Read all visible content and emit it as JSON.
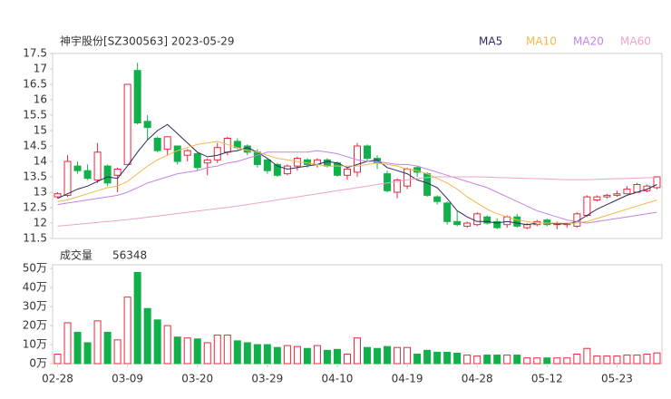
{
  "chart_data": [
    {
      "type": "candlestick",
      "title": "神宇股份[SZ300563] 2023-05-29",
      "up_color": "#e8283c",
      "down_color": "#12b04a",
      "ylim": [
        11.5,
        17.5
      ],
      "yticks": [
        11.5,
        12,
        12.5,
        13,
        13.5,
        14,
        14.5,
        15,
        15.5,
        16,
        16.5,
        17,
        17.5
      ],
      "legend": "top-right",
      "open": [
        12.85,
        12.9,
        13.85,
        13.7,
        13.4,
        13.85,
        13.55,
        13.9,
        16.95,
        15.3,
        14.75,
        14.4,
        14.5,
        14.2,
        14.25,
        13.95,
        14.05,
        14.3,
        14.65,
        14.5,
        14.3,
        14.05,
        13.9,
        13.6,
        13.85,
        14.05,
        13.9,
        14.05,
        13.95,
        13.55,
        13.65,
        14.5,
        14.1,
        13.6,
        13.0,
        13.2,
        13.8,
        13.6,
        12.85,
        12.65,
        12.05,
        11.9,
        11.95,
        12.2,
        12.05,
        11.95,
        12.2,
        11.85,
        11.95,
        12.1,
        11.95,
        11.95,
        11.9,
        12.25,
        12.75,
        12.85,
        12.9,
        12.95,
        13.0,
        13.05,
        13.15
      ],
      "high": [
        13.0,
        14.2,
        14.0,
        13.9,
        14.6,
        13.9,
        13.8,
        16.5,
        17.2,
        15.5,
        14.8,
        14.8,
        14.5,
        14.4,
        14.3,
        14.1,
        14.6,
        14.8,
        14.75,
        14.55,
        14.4,
        14.1,
        13.95,
        13.9,
        14.15,
        14.1,
        14.1,
        14.1,
        14.0,
        13.8,
        14.6,
        14.55,
        14.2,
        13.7,
        13.45,
        13.8,
        13.85,
        13.65,
        12.9,
        12.7,
        12.4,
        12.05,
        12.35,
        12.25,
        12.15,
        12.25,
        12.3,
        12.0,
        12.1,
        12.15,
        12.05,
        12.0,
        12.35,
        12.9,
        12.9,
        12.95,
        13.05,
        13.2,
        13.3,
        13.25,
        13.5
      ],
      "low": [
        12.8,
        12.85,
        13.6,
        13.4,
        13.3,
        13.2,
        13.0,
        13.9,
        15.2,
        14.7,
        14.3,
        14.2,
        13.9,
        14.0,
        13.7,
        13.55,
        13.95,
        14.2,
        14.4,
        14.2,
        13.8,
        13.6,
        13.5,
        13.55,
        13.7,
        13.8,
        13.8,
        13.8,
        13.5,
        13.4,
        13.5,
        14.0,
        13.75,
        13.0,
        12.8,
        13.1,
        13.5,
        12.85,
        12.6,
        11.95,
        11.9,
        11.85,
        11.9,
        11.95,
        11.8,
        11.85,
        11.85,
        11.8,
        11.9,
        11.9,
        11.8,
        11.85,
        11.85,
        12.2,
        12.7,
        12.8,
        12.85,
        12.95,
        13.0,
        13.0,
        13.1
      ],
      "close": [
        12.95,
        14.0,
        13.7,
        13.45,
        14.3,
        13.3,
        13.75,
        16.5,
        15.25,
        15.1,
        14.35,
        14.8,
        14.0,
        14.35,
        13.8,
        14.05,
        14.45,
        14.75,
        14.45,
        14.3,
        13.9,
        13.7,
        13.55,
        13.85,
        14.1,
        13.9,
        14.05,
        13.85,
        13.55,
        13.75,
        14.5,
        14.1,
        13.95,
        13.05,
        13.4,
        13.75,
        13.65,
        12.9,
        12.7,
        12.05,
        11.95,
        12.0,
        12.3,
        12.0,
        11.85,
        12.2,
        11.9,
        11.95,
        12.05,
        11.95,
        12.0,
        12.0,
        12.3,
        12.85,
        12.85,
        12.9,
        12.95,
        13.1,
        13.25,
        13.2,
        13.5
      ],
      "series": [
        {
          "name": "MA5",
          "color": "#2b2b5e",
          "values": [
            12.8,
            12.95,
            13.1,
            13.2,
            13.35,
            13.5,
            13.45,
            13.85,
            14.3,
            14.7,
            15.0,
            15.2,
            14.9,
            14.6,
            14.3,
            14.15,
            14.2,
            14.3,
            14.35,
            14.45,
            14.3,
            14.1,
            13.85,
            13.75,
            13.8,
            13.85,
            13.9,
            14.0,
            13.95,
            13.8,
            13.9,
            14.0,
            14.05,
            13.8,
            13.7,
            13.6,
            13.4,
            13.3,
            13.15,
            12.8,
            12.4,
            12.2,
            12.05,
            12.05,
            12.0,
            12.05,
            12.0,
            11.95,
            12.0,
            12.0,
            11.97,
            11.98,
            12.05,
            12.25,
            12.45,
            12.6,
            12.75,
            12.9,
            13.0,
            13.1,
            13.25
          ]
        },
        {
          "name": "MA10",
          "color": "#f2b84b",
          "values": [
            12.7,
            12.75,
            12.85,
            12.95,
            13.05,
            13.15,
            13.2,
            13.35,
            13.6,
            13.85,
            14.05,
            14.2,
            14.35,
            14.45,
            14.55,
            14.6,
            14.65,
            14.55,
            14.45,
            14.35,
            14.3,
            14.2,
            14.1,
            14.05,
            14.0,
            13.95,
            13.9,
            13.85,
            13.85,
            13.85,
            13.85,
            13.9,
            13.95,
            13.9,
            13.85,
            13.75,
            13.7,
            13.6,
            13.45,
            13.3,
            13.1,
            12.85,
            12.65,
            12.45,
            12.3,
            12.2,
            12.1,
            12.05,
            12.0,
            12.0,
            12.0,
            12.0,
            12.0,
            12.05,
            12.15,
            12.25,
            12.35,
            12.45,
            12.55,
            12.65,
            12.75
          ]
        },
        {
          "name": "MA20",
          "color": "#c383e8",
          "values": [
            12.6,
            12.65,
            12.7,
            12.75,
            12.8,
            12.85,
            12.9,
            13.0,
            13.15,
            13.3,
            13.4,
            13.5,
            13.6,
            13.65,
            13.7,
            13.8,
            13.85,
            13.95,
            14.0,
            14.1,
            14.2,
            14.3,
            14.3,
            14.3,
            14.3,
            14.3,
            14.35,
            14.3,
            14.25,
            14.15,
            14.05,
            14.0,
            14.0,
            13.95,
            13.9,
            13.9,
            13.85,
            13.75,
            13.65,
            13.55,
            13.45,
            13.35,
            13.25,
            13.15,
            13.0,
            12.85,
            12.7,
            12.55,
            12.4,
            12.3,
            12.2,
            12.1,
            12.05,
            12.0,
            12.05,
            12.1,
            12.15,
            12.2,
            12.25,
            12.3,
            12.35
          ]
        },
        {
          "name": "MA60",
          "color": "#f0a3c8",
          "values": [
            11.9,
            11.93,
            11.96,
            11.99,
            12.02,
            12.05,
            12.08,
            12.11,
            12.15,
            12.19,
            12.23,
            12.27,
            12.31,
            12.35,
            12.39,
            12.43,
            12.47,
            12.51,
            12.55,
            12.6,
            12.65,
            12.7,
            12.75,
            12.8,
            12.85,
            12.9,
            12.95,
            13.0,
            13.05,
            13.1,
            13.15,
            13.2,
            13.25,
            13.3,
            13.35,
            13.4,
            13.45,
            13.48,
            13.5,
            13.5,
            13.5,
            13.5,
            13.5,
            13.49,
            13.48,
            13.47,
            13.46,
            13.45,
            13.44,
            13.43,
            13.42,
            13.41,
            13.41,
            13.41,
            13.42,
            13.43,
            13.44,
            13.45,
            13.46,
            13.47,
            13.48
          ]
        }
      ]
    },
    {
      "type": "bar",
      "title": "成交量",
      "last_volume": 56348,
      "categories": [
        "02-28",
        null,
        null,
        null,
        null,
        null,
        null,
        "03-09",
        null,
        null,
        null,
        null,
        null,
        null,
        "03-20",
        null,
        null,
        null,
        null,
        null,
        null,
        "03-29",
        null,
        null,
        null,
        null,
        null,
        null,
        "04-10",
        null,
        null,
        null,
        null,
        null,
        null,
        "04-19",
        null,
        null,
        null,
        null,
        null,
        null,
        "04-28",
        null,
        null,
        null,
        null,
        null,
        null,
        "05-12",
        null,
        null,
        null,
        null,
        null,
        null,
        "05-23",
        null,
        null,
        null,
        null
      ],
      "values": [
        5,
        21.5,
        16.5,
        11,
        22.5,
        16.5,
        12.5,
        35,
        48,
        29,
        23,
        20,
        14,
        13.5,
        13,
        11,
        15,
        15,
        12,
        11,
        10,
        10,
        8.5,
        9.5,
        9,
        8,
        9.5,
        7,
        7.5,
        5,
        13.5,
        8.5,
        8,
        9,
        8.5,
        8.5,
        5,
        7,
        6,
        6,
        5.5,
        4.5,
        4,
        4.5,
        4.5,
        4.5,
        4.5,
        3,
        3,
        3,
        3,
        3,
        5,
        8,
        4,
        4,
        4,
        4.5,
        4.5,
        5,
        5.6348
      ],
      "ylim": [
        0,
        52
      ],
      "yticks": [
        {
          "value": 0,
          "label": "0万"
        },
        {
          "value": 10,
          "label": "10万"
        },
        {
          "value": 20,
          "label": "20万"
        },
        {
          "value": 30,
          "label": "30万"
        },
        {
          "value": 40,
          "label": "40万"
        },
        {
          "value": 50,
          "label": "50万"
        }
      ]
    }
  ]
}
